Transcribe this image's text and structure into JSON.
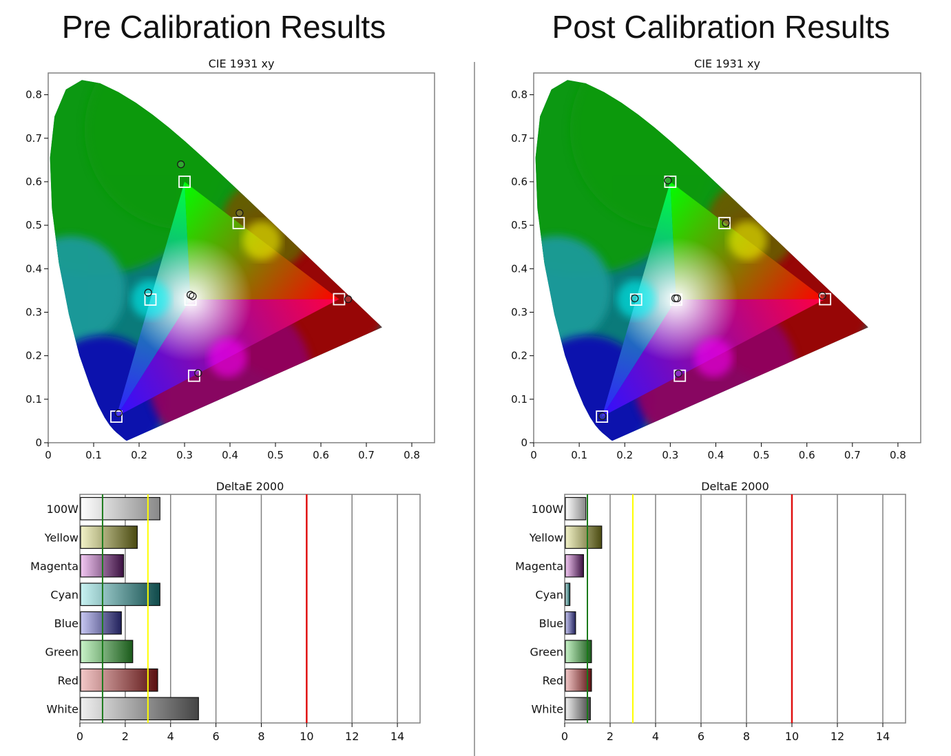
{
  "panels": [
    {
      "title": "Pre Calibration Results"
    },
    {
      "title": "Post Calibration Results"
    }
  ],
  "colors": {
    "frame": "#808080",
    "target_marker": "#ffffff",
    "measured_marker": "#1a1a1a",
    "threshold_green": "#1a7a1a",
    "threshold_yellow": "#ffff00",
    "threshold_red": "#e01010",
    "gridline": "#808080"
  },
  "chart_data": [
    {
      "type": "scatter",
      "title": "CIE 1931 xy",
      "xlim": [
        0,
        0.85
      ],
      "ylim": [
        0,
        0.85
      ],
      "xticks": [
        "0",
        "0.1",
        "0.2",
        "0.3",
        "0.4",
        "0.5",
        "0.6",
        "0.7",
        "0.8"
      ],
      "yticks": [
        "0",
        "0.1",
        "0.2",
        "0.3",
        "0.4",
        "0.5",
        "0.6",
        "0.7",
        "0.8"
      ],
      "target_gamut": [
        [
          0.64,
          0.33
        ],
        [
          0.3,
          0.6
        ],
        [
          0.15,
          0.06
        ]
      ],
      "targets": [
        {
          "label": "Red",
          "x": 0.64,
          "y": 0.33
        },
        {
          "label": "Green",
          "x": 0.3,
          "y": 0.6
        },
        {
          "label": "Blue",
          "x": 0.15,
          "y": 0.06
        },
        {
          "label": "Yellow",
          "x": 0.419,
          "y": 0.505
        },
        {
          "label": "Cyan",
          "x": 0.225,
          "y": 0.329
        },
        {
          "label": "Magenta",
          "x": 0.321,
          "y": 0.154
        },
        {
          "label": "White",
          "x": 0.313,
          "y": 0.329
        }
      ],
      "measured": [
        {
          "label": "Red",
          "x": 0.66,
          "y": 0.33
        },
        {
          "label": "Green",
          "x": 0.292,
          "y": 0.64
        },
        {
          "label": "Blue",
          "x": 0.155,
          "y": 0.068
        },
        {
          "label": "Yellow",
          "x": 0.421,
          "y": 0.528
        },
        {
          "label": "Cyan",
          "x": 0.22,
          "y": 0.345
        },
        {
          "label": "Magenta",
          "x": 0.33,
          "y": 0.16
        },
        {
          "label": "White",
          "x": 0.313,
          "y": 0.34
        },
        {
          "label": "100W",
          "x": 0.318,
          "y": 0.337
        }
      ]
    },
    {
      "type": "bar",
      "title": "DeltaE 2000",
      "orientation": "horizontal",
      "xlim": [
        0,
        15
      ],
      "xticks": [
        "0",
        "2",
        "4",
        "6",
        "8",
        "10",
        "12",
        "14"
      ],
      "thresholds": [
        1,
        3,
        10
      ],
      "categories": [
        "100W",
        "Yellow",
        "Magenta",
        "Cyan",
        "Blue",
        "Green",
        "Red",
        "White"
      ],
      "values": [
        3.5,
        2.5,
        1.9,
        3.5,
        1.8,
        2.3,
        3.4,
        5.2
      ],
      "bar_colors": [
        "#888888",
        "#4a4a10",
        "#3a1040",
        "#0f4a4a",
        "#20205a",
        "#1a5a1a",
        "#5a1010",
        "#444444"
      ]
    },
    {
      "type": "scatter",
      "title": "CIE 1931 xy",
      "xlim": [
        0,
        0.85
      ],
      "ylim": [
        0,
        0.85
      ],
      "xticks": [
        "0",
        "0.1",
        "0.2",
        "0.3",
        "0.4",
        "0.5",
        "0.6",
        "0.7",
        "0.8"
      ],
      "yticks": [
        "0",
        "0.1",
        "0.2",
        "0.3",
        "0.4",
        "0.5",
        "0.6",
        "0.7",
        "0.8"
      ],
      "target_gamut": [
        [
          0.64,
          0.33
        ],
        [
          0.3,
          0.6
        ],
        [
          0.15,
          0.06
        ]
      ],
      "targets": [
        {
          "label": "Red",
          "x": 0.64,
          "y": 0.33
        },
        {
          "label": "Green",
          "x": 0.3,
          "y": 0.6
        },
        {
          "label": "Blue",
          "x": 0.15,
          "y": 0.06
        },
        {
          "label": "Yellow",
          "x": 0.419,
          "y": 0.505
        },
        {
          "label": "Cyan",
          "x": 0.225,
          "y": 0.329
        },
        {
          "label": "Magenta",
          "x": 0.321,
          "y": 0.154
        },
        {
          "label": "White",
          "x": 0.313,
          "y": 0.329
        }
      ],
      "measured": [
        {
          "label": "Red",
          "x": 0.634,
          "y": 0.338
        },
        {
          "label": "Green",
          "x": 0.295,
          "y": 0.603
        },
        {
          "label": "Blue",
          "x": 0.151,
          "y": 0.061
        },
        {
          "label": "Yellow",
          "x": 0.422,
          "y": 0.505
        },
        {
          "label": "Cyan",
          "x": 0.222,
          "y": 0.332
        },
        {
          "label": "Magenta",
          "x": 0.318,
          "y": 0.159
        },
        {
          "label": "White",
          "x": 0.311,
          "y": 0.332
        },
        {
          "label": "100W",
          "x": 0.315,
          "y": 0.332
        }
      ]
    },
    {
      "type": "bar",
      "title": "DeltaE 2000",
      "orientation": "horizontal",
      "xlim": [
        0,
        15
      ],
      "xticks": [
        "0",
        "2",
        "4",
        "6",
        "8",
        "10",
        "12",
        "14"
      ],
      "thresholds": [
        1,
        3,
        10
      ],
      "categories": [
        "100W",
        "Yellow",
        "Magenta",
        "Cyan",
        "Blue",
        "Green",
        "Red",
        "White"
      ],
      "values": [
        0.9,
        1.6,
        0.8,
        0.2,
        0.45,
        1.15,
        1.15,
        1.1
      ],
      "bar_colors": [
        "#888888",
        "#4a4a10",
        "#3a1040",
        "#0f4a4a",
        "#20205a",
        "#1a5a1a",
        "#5a1010",
        "#444444"
      ]
    }
  ]
}
